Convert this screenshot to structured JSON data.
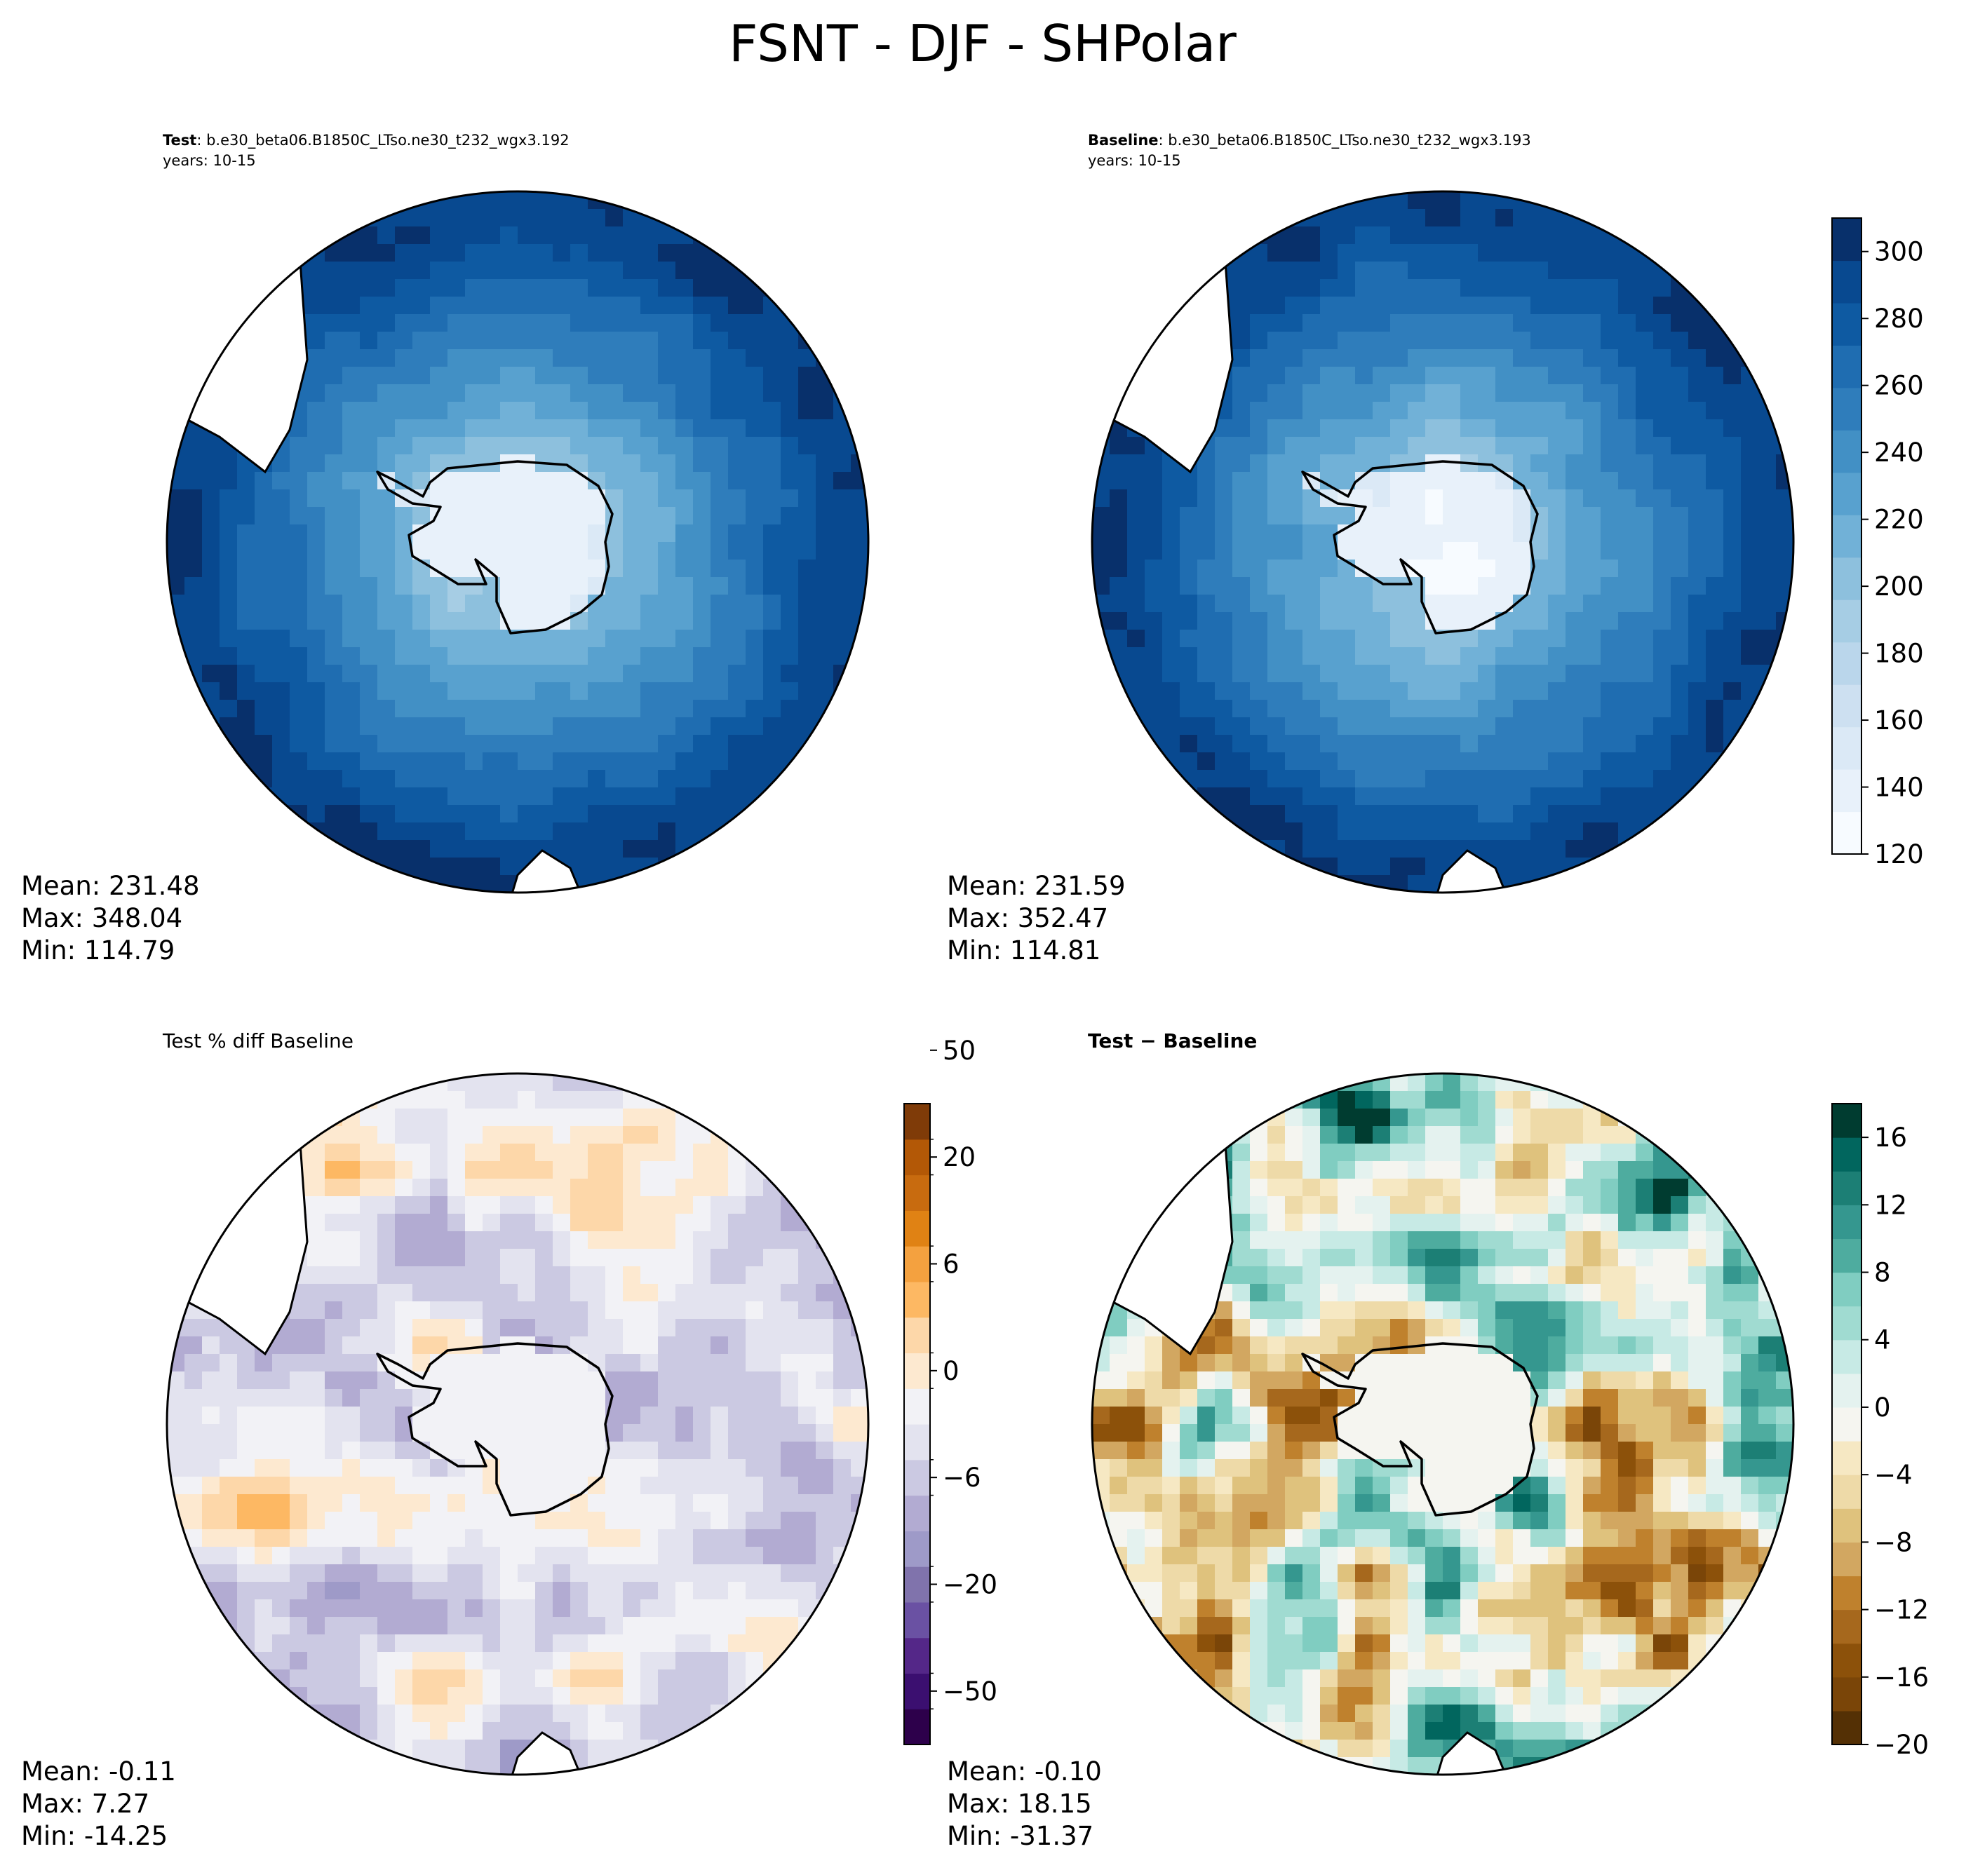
{
  "figure_title": "FSNT - DJF - SHPolar",
  "colors": {
    "blues": [
      "#f7fbff",
      "#e8f1fa",
      "#dbe9f6",
      "#cde0f1",
      "#bad6eb",
      "#a6cde4",
      "#8dc0dd",
      "#71b1d7",
      "#58a1cf",
      "#4290c5",
      "#2f7dbb",
      "#1f6db1",
      "#0e5aa2",
      "#084990",
      "#08306b"
    ],
    "puor": [
      "#2d004b",
      "#3b0f70",
      "#542788",
      "#6a51a3",
      "#8073ac",
      "#9e9ac8",
      "#b2abd2",
      "#cbc9e2",
      "#e3e3ef",
      "#f2f2f6",
      "#fde9d0",
      "#fdd7a9",
      "#fdb863",
      "#f4a13f",
      "#e08214",
      "#c86b0f",
      "#b35806",
      "#7f3b08"
    ],
    "brbg": [
      "#543005",
      "#7a4508",
      "#8c510a",
      "#a6681d",
      "#bf812d",
      "#d2a761",
      "#dfc27d",
      "#eedaa8",
      "#f6e8c3",
      "#f5f5f0",
      "#e4f2ef",
      "#c7eae5",
      "#a0dbd1",
      "#80cdc1",
      "#4eac9f",
      "#35978f",
      "#1c7f75",
      "#01665e",
      "#003c30"
    ]
  },
  "panels": [
    {
      "id": "test",
      "title_bold": "Test",
      "title_rest": ": b.e30_beta06.B1850C_LTso.ne30_t232_wgx3.192",
      "subtitle": "years: 10-15",
      "stats": [
        "Mean: 231.48",
        "Max: 348.04",
        "Min: 114.79"
      ],
      "field": "absolute"
    },
    {
      "id": "baseline",
      "title_bold": "Baseline",
      "title_rest": ": b.e30_beta06.B1850C_LTso.ne30_t232_wgx3.193",
      "subtitle": "years: 10-15",
      "stats": [
        "Mean: 231.59",
        "Max: 352.47",
        "Min: 114.81"
      ],
      "field": "absolute"
    },
    {
      "id": "pctdiff",
      "title_plain": "Test % diff Baseline",
      "stats": [
        "Mean: -0.11",
        "Max:  7.27",
        "Min: -14.25"
      ],
      "field": "percent"
    },
    {
      "id": "diff",
      "title_bold": "Test − Baseline",
      "stats": [
        "Mean: -0.10",
        "Max: 18.15",
        "Min: -31.37"
      ],
      "field": "difference"
    }
  ],
  "chart_data": [
    {
      "type": "heatmap",
      "name": "FSNT absolute colorbar (Test and Baseline)",
      "levels_range": [
        120,
        310
      ],
      "ticks": [
        120,
        140,
        160,
        180,
        200,
        220,
        240,
        260,
        280,
        300
      ],
      "tick_labels": [
        "120",
        "140",
        "160",
        "180",
        "200",
        "220",
        "240",
        "260",
        "280",
        "300"
      ],
      "panels": [
        "test",
        "baseline"
      ]
    },
    {
      "type": "heatmap",
      "name": "Test % diff Baseline colorbar",
      "ticks": [
        -50,
        -20,
        -6,
        0,
        6,
        20,
        50
      ],
      "tick_labels": [
        "−50",
        "−20",
        "−6",
        "0",
        "6",
        "20",
        "50"
      ],
      "panels": [
        "pctdiff"
      ]
    },
    {
      "type": "heatmap",
      "name": "Test − Baseline colorbar",
      "ticks": [
        -20,
        -16,
        -12,
        -8,
        -4,
        0,
        4,
        8,
        12,
        16
      ],
      "tick_labels": [
        "−20",
        "−16",
        "−12",
        "−8",
        "−4",
        "0",
        "4",
        "8",
        "12",
        "16"
      ],
      "panels": [
        "diff"
      ]
    }
  ]
}
